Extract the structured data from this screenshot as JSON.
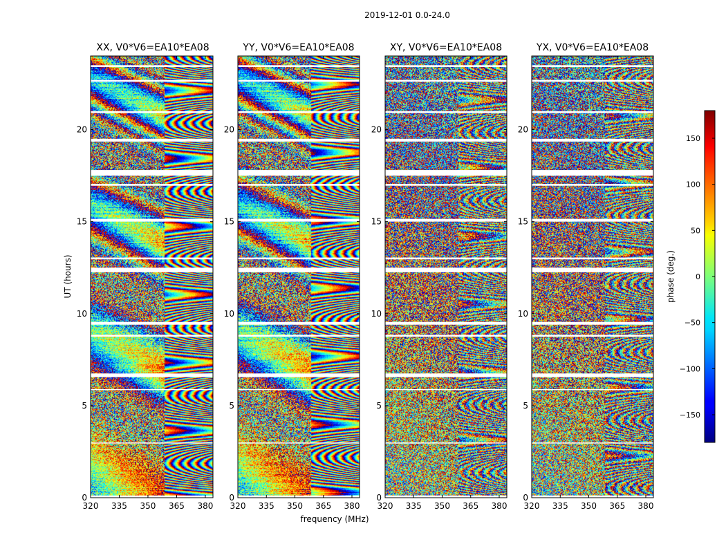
{
  "chart_data": {
    "type": "heatmap",
    "suptitle": "2019-12-01 0.0-24.0",
    "xlabel": "frequency (MHz)",
    "ylabel": "UT (hours)",
    "xlim": [
      320,
      384
    ],
    "ylim": [
      0,
      24
    ],
    "xticks": [
      320,
      335,
      350,
      365,
      380
    ],
    "yticks": [
      0,
      5,
      10,
      15,
      20
    ],
    "panels": [
      {
        "title": "XX, V0*V6=EA10*EA08",
        "pol": "XX"
      },
      {
        "title": "YY, V0*V6=EA10*EA08",
        "pol": "YY"
      },
      {
        "title": "XY, V0*V6=EA10*EA08",
        "pol": "XY"
      },
      {
        "title": "YX, V0*V6=EA10*EA08",
        "pol": "YX"
      }
    ],
    "flagged_ut_hours": [
      [
        0.0,
        0.12
      ],
      [
        2.95,
        3.0
      ],
      [
        5.85,
        5.9
      ],
      [
        6.55,
        6.75
      ],
      [
        8.75,
        8.85
      ],
      [
        9.4,
        9.55
      ],
      [
        12.25,
        12.5
      ],
      [
        12.95,
        13.05
      ],
      [
        15.0,
        15.15
      ],
      [
        16.95,
        17.05
      ],
      [
        17.5,
        17.8
      ],
      [
        19.35,
        19.5
      ],
      [
        20.9,
        21.0
      ],
      [
        22.6,
        22.7
      ],
      [
        23.4,
        23.5
      ]
    ],
    "colorbar": {
      "label": "phase (deg.)",
      "range": [
        -180,
        180
      ],
      "ticks": [
        150,
        100,
        50,
        0,
        -50,
        -100,
        -150
      ],
      "tick_labels": [
        "150",
        "100",
        "50",
        "0",
        "−50",
        "−100",
        "−150"
      ],
      "colormap": "jet"
    }
  }
}
